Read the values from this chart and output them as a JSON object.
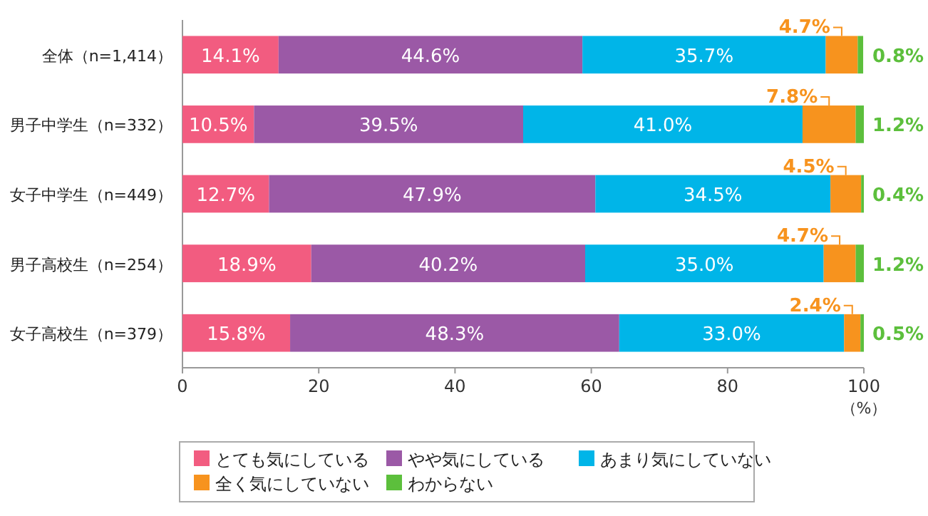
{
  "chart_data": {
    "type": "bar",
    "orientation": "horizontal",
    "stacked": true,
    "legend": "bottom",
    "xlabel": "（%）",
    "categories": [
      "全体（n=1,414）",
      "男子中学生（n=332）",
      "女子中学生（n=449）",
      "男子高校生（n=254）",
      "女子高校生（n=379）"
    ],
    "xlim": [
      0,
      100
    ],
    "xticks": [
      0,
      20,
      40,
      60,
      80,
      100
    ],
    "series": [
      {
        "name": "とても気にしている",
        "color": "#f25c80",
        "values": [
          14.1,
          10.5,
          12.7,
          18.9,
          15.8
        ],
        "value_labels": [
          "14.1%",
          "10.5%",
          "12.7%",
          "18.9%",
          "15.8%"
        ]
      },
      {
        "name": "やや気にしている",
        "color": "#9b59a6",
        "values": [
          44.6,
          39.5,
          47.9,
          40.2,
          48.3
        ],
        "value_labels": [
          "44.6%",
          "39.5%",
          "47.9%",
          "40.2%",
          "48.3%"
        ]
      },
      {
        "name": "あまり気にしていない",
        "color": "#00b5e8",
        "values": [
          35.7,
          41.0,
          34.5,
          35.0,
          33.0
        ],
        "value_labels": [
          "35.7%",
          "41.0%",
          "34.5%",
          "35.0%",
          "33.0%"
        ]
      },
      {
        "name": "全く気にしていない",
        "color": "#f7931e",
        "values": [
          4.7,
          7.8,
          4.5,
          4.7,
          2.4
        ],
        "value_labels": [
          "4.7%",
          "7.8%",
          "4.5%",
          "4.7%",
          "2.4%"
        ]
      },
      {
        "name": "わからない",
        "color": "#5cbf3c",
        "values": [
          0.8,
          1.2,
          0.4,
          1.2,
          0.5
        ],
        "value_labels": [
          "0.8%",
          "1.2%",
          "0.4%",
          "1.2%",
          "0.5%"
        ]
      }
    ]
  }
}
